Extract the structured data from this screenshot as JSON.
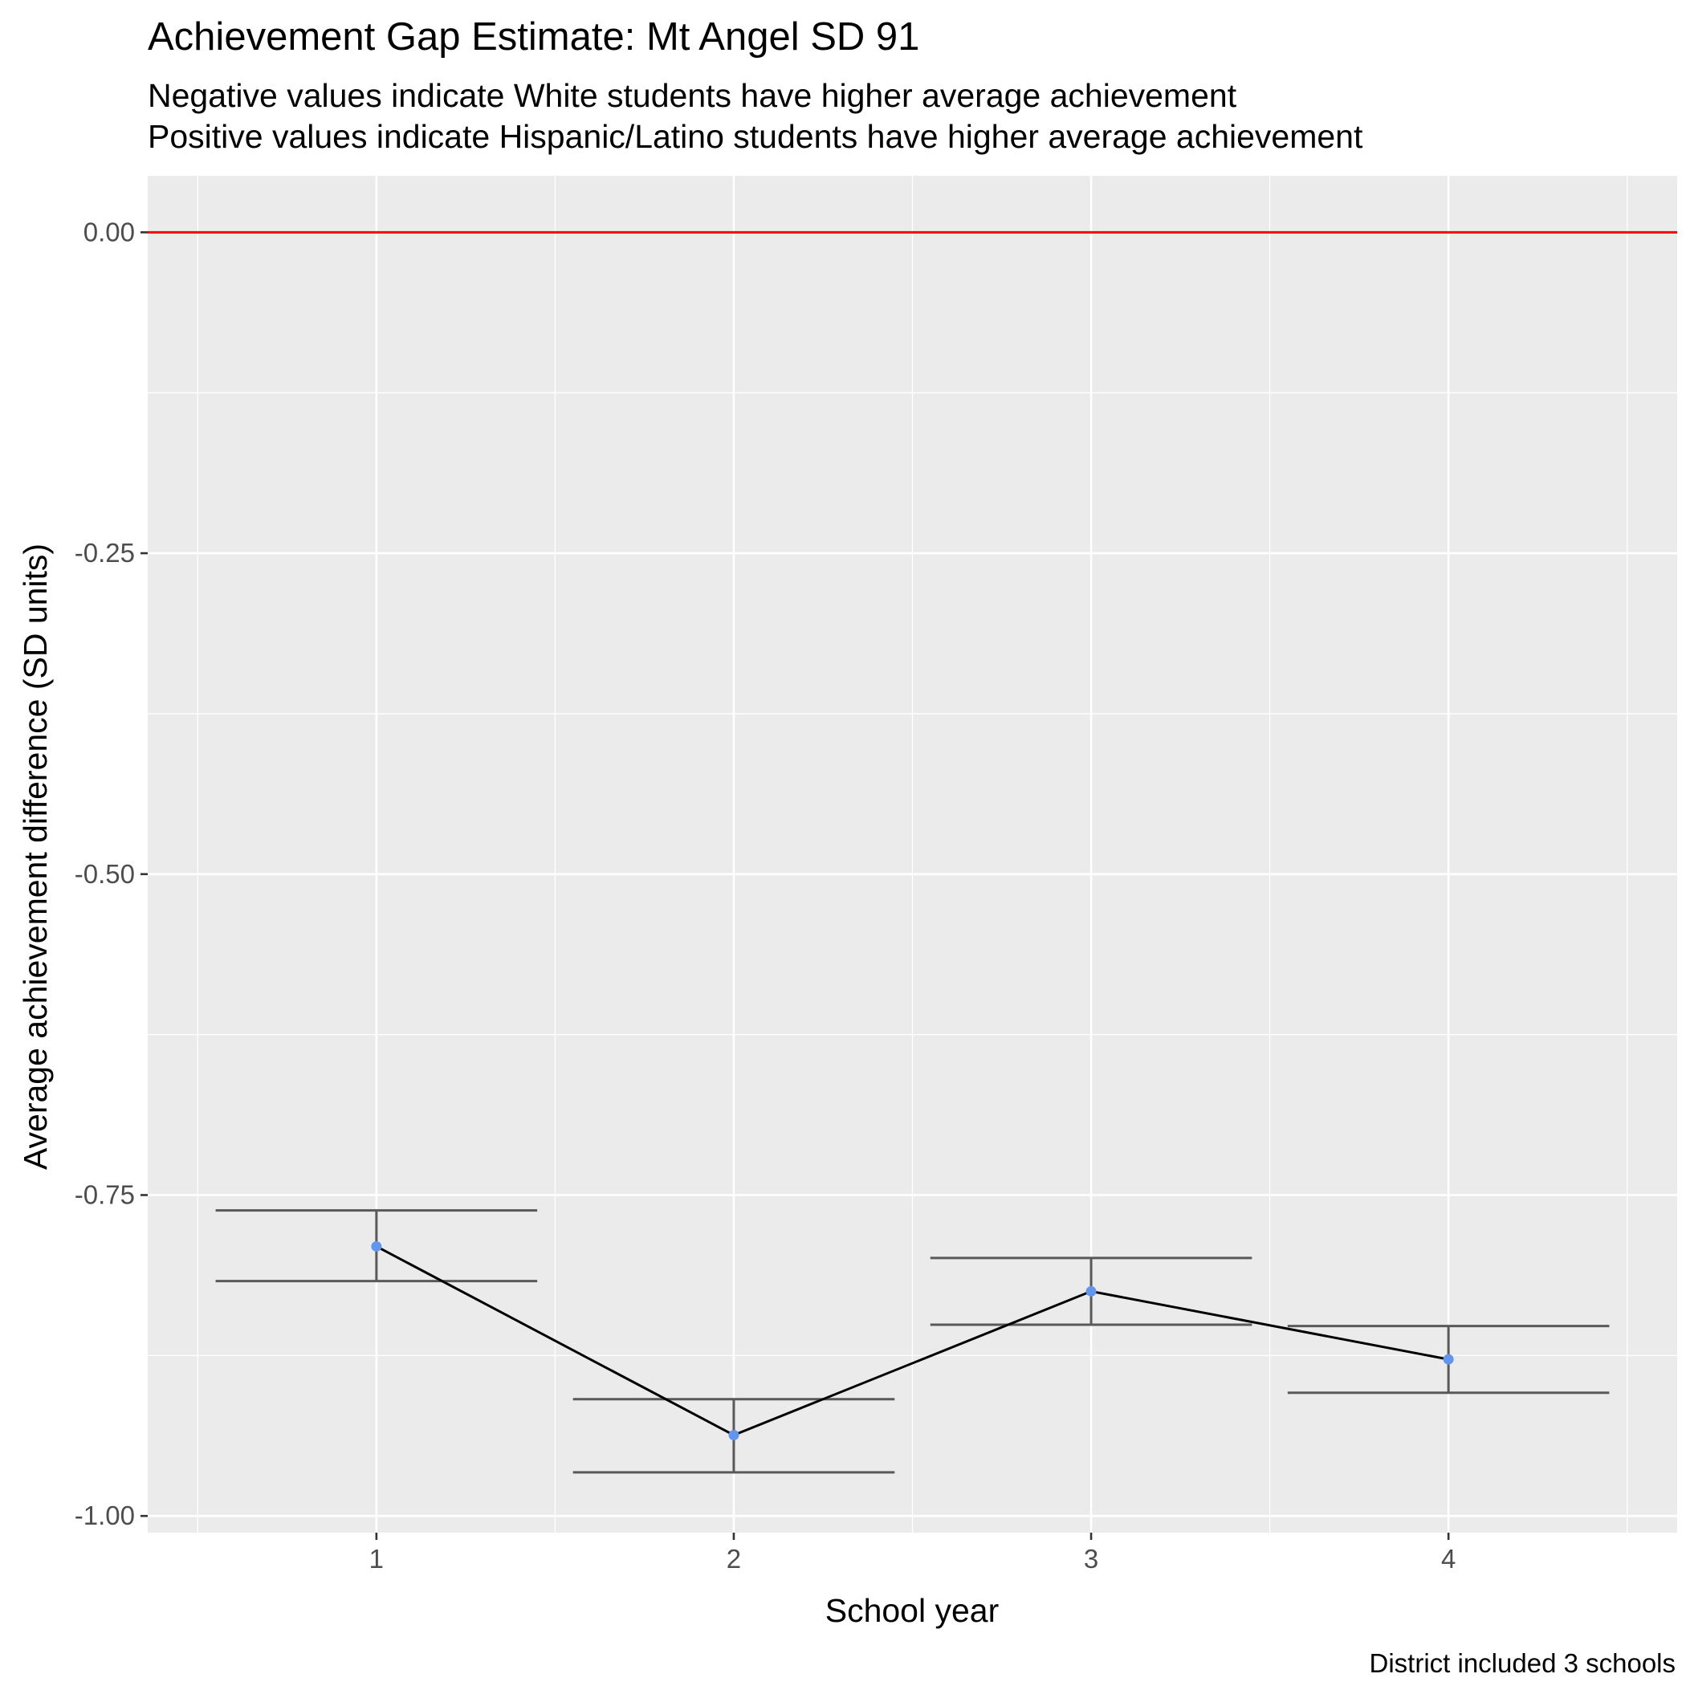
{
  "chart_data": {
    "type": "line",
    "title": "Achievement Gap Estimate: Mt Angel SD 91",
    "subtitle_lines": [
      "Negative values indicate White students have higher average achievement",
      "Positive values indicate Hispanic/Latino students have higher average achievement"
    ],
    "xlabel": "School year",
    "ylabel": "Average achievement difference (SD units)",
    "caption": "District included 3 schools",
    "x": [
      1,
      2,
      3,
      4
    ],
    "y": [
      -0.79,
      -0.937,
      -0.825,
      -0.878
    ],
    "error_bars": {
      "lower": [
        -0.817,
        -0.966,
        -0.851,
        -0.904
      ],
      "upper": [
        -0.762,
        -0.909,
        -0.799,
        -0.852
      ]
    },
    "x_ticks": [
      1,
      2,
      3,
      4
    ],
    "x_tick_labels": [
      "1",
      "2",
      "3",
      "4"
    ],
    "y_ticks": [
      0.0,
      -0.25,
      -0.5,
      -0.75,
      -1.0
    ],
    "y_tick_labels": [
      "0.00",
      "-0.25",
      "-0.50",
      "-0.75",
      "-1.00"
    ],
    "xlim": [
      0.36,
      4.64
    ],
    "ylim": [
      -1.013,
      0.044
    ],
    "reference_line": {
      "y": 0,
      "color": "#ff0000"
    },
    "grid": true,
    "colors": {
      "panel": "#ebebeb",
      "grid": "#ffffff",
      "point": "#6495ed",
      "line": "#000000",
      "errorbar": "#595959",
      "reference": "#ff0000"
    }
  }
}
